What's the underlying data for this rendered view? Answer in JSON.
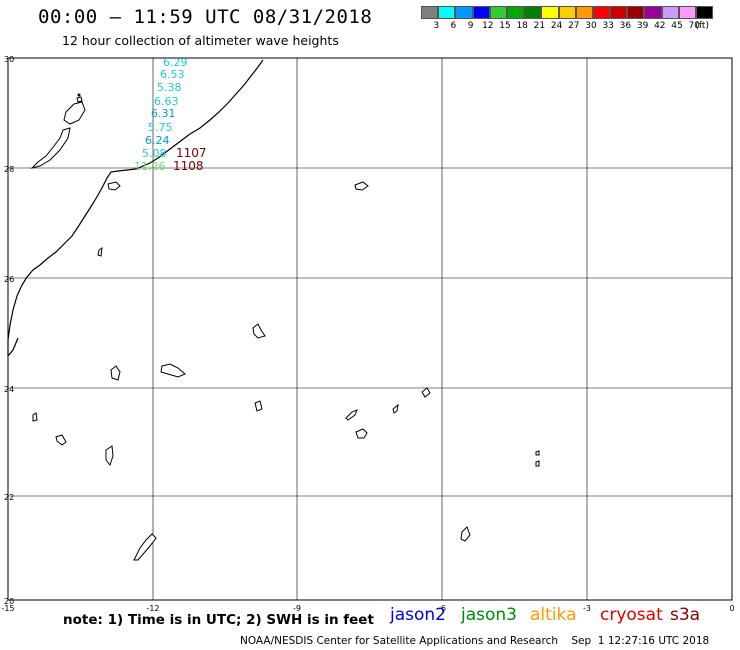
{
  "title": "00:00 – 11:59 UTC 08/31/2018",
  "subtitle": "12 hour collection of altimeter wave heights",
  "legend": {
    "colors": [
      "#808080",
      "#00ffff",
      "#0099ff",
      "#0000ff",
      "#33cc33",
      "#00aa00",
      "#008000",
      "#ffff00",
      "#ffcc00",
      "#ff9900",
      "#ff0000",
      "#cc0000",
      "#990000",
      "#990099",
      "#cc99ff",
      "#ff99ff",
      "#000000"
    ],
    "labels": [
      "3",
      "6",
      "9",
      "12",
      "15",
      "18",
      "21",
      "24",
      "27",
      "30",
      "33",
      "36",
      "39",
      "42",
      "45",
      "70",
      "(ft)"
    ]
  },
  "map": {
    "lat_labels": [
      "30",
      "28",
      "26",
      "24",
      "22",
      "20"
    ],
    "lon_labels": [
      "-15",
      "-12",
      "-9",
      "-6",
      "-3",
      "0"
    ],
    "swh_values": [
      {
        "text": "6.29",
        "color": "#22c8d8"
      },
      {
        "text": "6.53",
        "color": "#22c8d8"
      },
      {
        "text": "5.38",
        "color": "#22c8d8"
      },
      {
        "text": "6.63",
        "color": "#22c8d8"
      },
      {
        "text": "6.31",
        "color": "#0099cc"
      },
      {
        "text": "5.75",
        "color": "#22c8d8"
      },
      {
        "text": "6.24",
        "color": "#0099cc"
      },
      {
        "text": "5.08",
        "color": "#22c8d8"
      },
      {
        "text": "11.26",
        "color": "#66dd66"
      }
    ],
    "time_labels": [
      {
        "text": "1107",
        "color": "#7a0000"
      },
      {
        "text": "1108",
        "color": "#7a0000"
      }
    ]
  },
  "note": "note:  1) Time is in UTC;  2) SWH is in feet",
  "satellites": [
    {
      "name": "jason2",
      "color": "#0000dd"
    },
    {
      "name": "jason3",
      "color": "#008800"
    },
    {
      "name": "altika",
      "color": "#ff9900"
    },
    {
      "name": "cryosat",
      "color": "#dd0000"
    },
    {
      "name": "s3a",
      "color": "#880000"
    }
  ],
  "footer": "NOAA/NESDIS Center for Satellite Applications and Research    Sep  1 12:27:16 UTC 2018"
}
